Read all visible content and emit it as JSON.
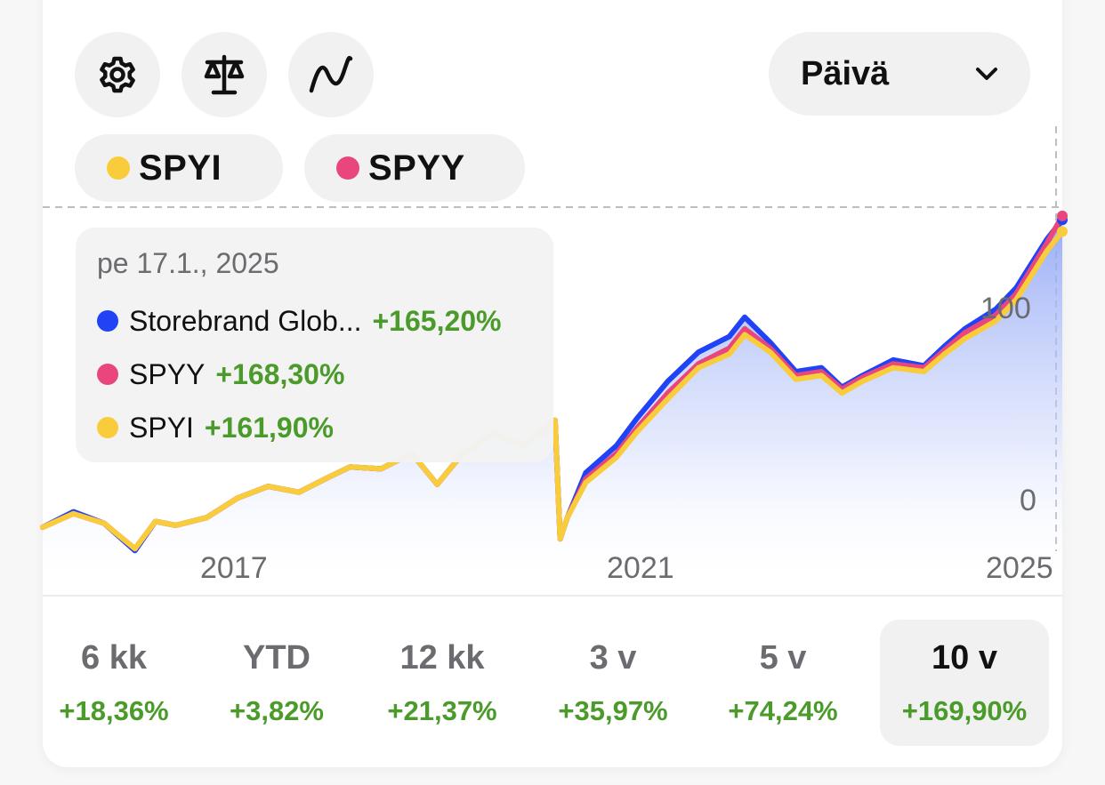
{
  "toolbar": {
    "icons": [
      "settings-icon",
      "compare-icon",
      "line-chart-icon"
    ],
    "period_select": {
      "selected": "Päivä"
    }
  },
  "chips": [
    {
      "name": "SPYI",
      "color": "#f9cc3c"
    },
    {
      "name": "SPYY",
      "color": "#e8467c"
    }
  ],
  "tooltip": {
    "date": "pe 17.1., 2025",
    "rows": [
      {
        "name": "Storebrand Glob...",
        "value": "+165,20%",
        "color": "#1f43f5"
      },
      {
        "name": "SPYY",
        "value": "+168,30%",
        "color": "#e8467c"
      },
      {
        "name": "SPYI",
        "value": "+161,90%",
        "color": "#f9cc3c"
      }
    ]
  },
  "chart_data": {
    "type": "line",
    "x_ticks": [
      "2017",
      "2021",
      "2025"
    ],
    "y_ticks": [
      "0",
      "100"
    ],
    "ylim": [
      -10,
      175
    ],
    "colors": {
      "storebrand": "#1f43f5",
      "spyy": "#e8467c",
      "spyi": "#f9cc3c",
      "area": "#8ea4f5"
    },
    "x": [
      2015.1,
      2015.4,
      2015.7,
      2016.0,
      2016.2,
      2016.4,
      2016.7,
      2017.0,
      2017.3,
      2017.6,
      2017.9,
      2018.1,
      2018.4,
      2018.7,
      2018.95,
      2019.2,
      2019.5,
      2019.8,
      2020.1,
      2020.15,
      2020.22,
      2020.4,
      2020.7,
      2020.9,
      2021.2,
      2021.5,
      2021.8,
      2021.95,
      2022.2,
      2022.45,
      2022.7,
      2022.9,
      2023.1,
      2023.4,
      2023.7,
      2023.9,
      2024.1,
      2024.4,
      2024.6,
      2024.9,
      2025.05
    ],
    "series": [
      {
        "name": "Storebrand Glob...",
        "values": [
          0,
          8,
          2,
          -12,
          3,
          1,
          5,
          15,
          21,
          18,
          26,
          31,
          30,
          38,
          22,
          38,
          48,
          42,
          55,
          -6,
          5,
          28,
          42,
          56,
          75,
          90,
          98,
          108,
          95,
          80,
          82,
          72,
          78,
          86,
          83,
          93,
          102,
          112,
          123,
          148,
          158
        ]
      },
      {
        "name": "SPYY",
        "values": [
          0,
          7,
          2,
          -11,
          3,
          1,
          5,
          15,
          21,
          18,
          26,
          31,
          30,
          38,
          22,
          38,
          48,
          42,
          55,
          -6,
          5,
          25,
          38,
          51,
          69,
          84,
          92,
          102,
          92,
          78,
          80,
          71,
          77,
          84,
          82,
          91,
          100,
          109,
          120,
          146,
          160
        ]
      },
      {
        "name": "SPYI",
        "values": [
          0,
          7,
          2,
          -11,
          3,
          1,
          5,
          15,
          21,
          18,
          26,
          31,
          30,
          38,
          22,
          38,
          48,
          42,
          55,
          -6,
          5,
          23,
          36,
          49,
          66,
          82,
          89,
          99,
          90,
          76,
          78,
          69,
          75,
          82,
          80,
          89,
          97,
          106,
          117,
          142,
          152
        ]
      }
    ]
  },
  "periods": [
    {
      "label": "6 kk",
      "value": "+18,36%"
    },
    {
      "label": "YTD",
      "value": "+3,82%"
    },
    {
      "label": "12 kk",
      "value": "+21,37%"
    },
    {
      "label": "3 v",
      "value": "+35,97%"
    },
    {
      "label": "5 v",
      "value": "+74,24%"
    },
    {
      "label": "10 v",
      "value": "+169,90%",
      "active": true
    }
  ]
}
